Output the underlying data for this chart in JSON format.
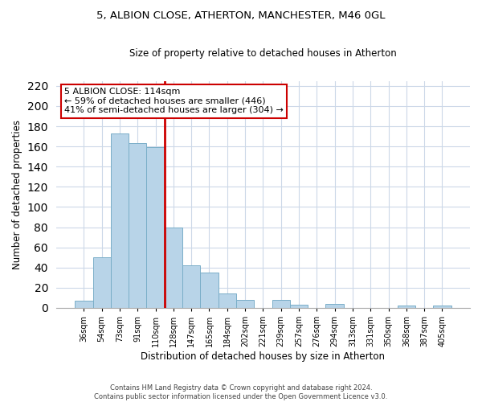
{
  "title1": "5, ALBION CLOSE, ATHERTON, MANCHESTER, M46 0GL",
  "title2": "Size of property relative to detached houses in Atherton",
  "xlabel": "Distribution of detached houses by size in Atherton",
  "ylabel": "Number of detached properties",
  "bar_labels": [
    "36sqm",
    "54sqm",
    "73sqm",
    "91sqm",
    "110sqm",
    "128sqm",
    "147sqm",
    "165sqm",
    "184sqm",
    "202sqm",
    "221sqm",
    "239sqm",
    "257sqm",
    "276sqm",
    "294sqm",
    "313sqm",
    "331sqm",
    "350sqm",
    "368sqm",
    "387sqm",
    "405sqm"
  ],
  "bar_values": [
    7,
    50,
    173,
    163,
    159,
    80,
    42,
    35,
    14,
    8,
    0,
    8,
    3,
    0,
    4,
    0,
    0,
    0,
    2,
    0,
    2
  ],
  "bar_color": "#b8d4e8",
  "bar_edgecolor": "#7aaec8",
  "vline_color": "#cc0000",
  "vline_x_index": 4.5,
  "annotation_text": "5 ALBION CLOSE: 114sqm\n← 59% of detached houses are smaller (446)\n41% of semi-detached houses are larger (304) →",
  "annotation_box_color": "#ffffff",
  "annotation_box_edgecolor": "#cc0000",
  "ylim": [
    0,
    225
  ],
  "yticks": [
    0,
    20,
    40,
    60,
    80,
    100,
    120,
    140,
    160,
    180,
    200,
    220
  ],
  "footnote1": "Contains HM Land Registry data © Crown copyright and database right 2024.",
  "footnote2": "Contains public sector information licensed under the Open Government Licence v3.0.",
  "bg_color": "#ffffff",
  "grid_color": "#ccd8e8"
}
